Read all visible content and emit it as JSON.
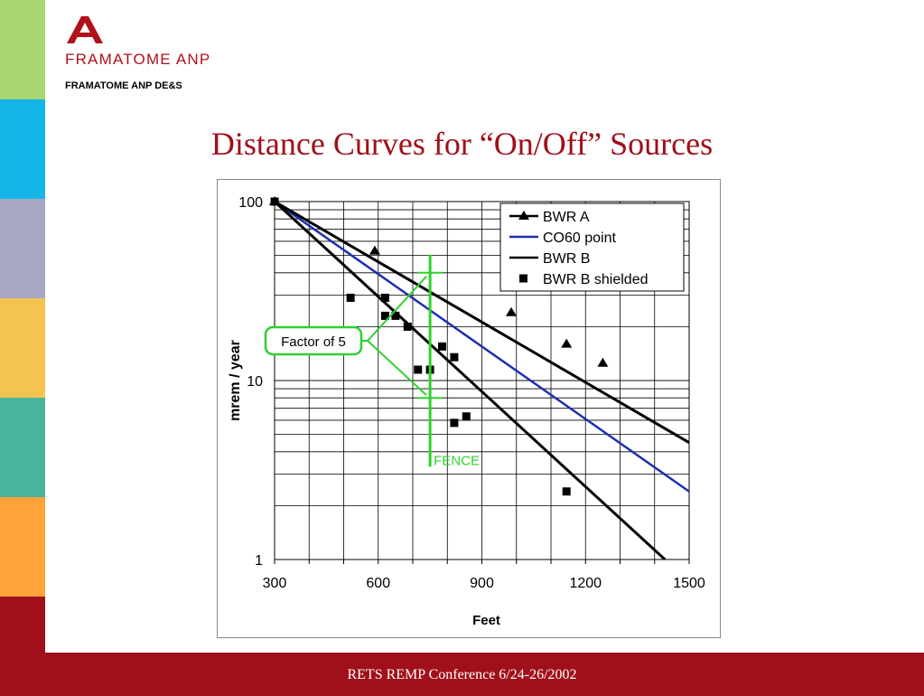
{
  "sidebar": {
    "stripes": [
      {
        "name": "stripe-green",
        "color": "#a8d672"
      },
      {
        "name": "stripe-cyan",
        "color": "#14b6e8"
      },
      {
        "name": "stripe-lavender",
        "color": "#a6a8c6"
      },
      {
        "name": "stripe-yellow",
        "color": "#f4c44e"
      },
      {
        "name": "stripe-teal",
        "color": "#47b49e"
      },
      {
        "name": "stripe-orange",
        "color": "#ffa33a"
      },
      {
        "name": "stripe-darkred",
        "color": "#a0101a"
      }
    ]
  },
  "header": {
    "logo_letter": "A",
    "brand": "FRAMATOME ANP",
    "division": "FRAMATOME ANP DE&S"
  },
  "slide": {
    "title": "Distance Curves for “On/Off” Sources"
  },
  "footer": {
    "text": "RETS REMP Conference  6/24-26/2002"
  },
  "colors": {
    "accent": "#a0101a",
    "annotation": "#2fd12f",
    "co60": "#1f2fb0"
  },
  "chart_data": {
    "type": "line",
    "xlabel": "Feet",
    "ylabel": "mrem / year",
    "xlim": [
      300,
      1500
    ],
    "ylim": [
      1,
      100
    ],
    "yscale": "log",
    "x_ticks": [
      300,
      600,
      900,
      1200,
      1500
    ],
    "y_ticks": [
      {
        "value": 1,
        "label": "1"
      },
      {
        "value": 10,
        "label": "10"
      },
      {
        "value": 100,
        "label": "100"
      }
    ],
    "grid": true,
    "legend_position": "top-right",
    "series": [
      {
        "name": "BWR A",
        "kind": "line-triangle",
        "color": "#000000",
        "x": [
          300,
          1500
        ],
        "y": [
          100,
          4.5
        ],
        "markers": {
          "x": [
            300,
            590,
            985,
            1145,
            1250
          ],
          "y": [
            100,
            53,
            24,
            16,
            12.5
          ]
        }
      },
      {
        "name": "CO60 point",
        "kind": "line",
        "color": "#1f2fb0",
        "x": [
          300,
          1500
        ],
        "y": [
          100,
          2.4
        ]
      },
      {
        "name": "BWR B",
        "kind": "line",
        "color": "#000000",
        "x": [
          300,
          1430
        ],
        "y": [
          100,
          1
        ]
      },
      {
        "name": "BWR B shielded",
        "kind": "square",
        "color": "#000000",
        "x": [
          300,
          520,
          620,
          620,
          650,
          685,
          715,
          750,
          785,
          820,
          820,
          855,
          1145
        ],
        "y": [
          100,
          29,
          29,
          23,
          23,
          20,
          11.5,
          11.5,
          15.5,
          13.5,
          5.8,
          6.3,
          2.4
        ]
      }
    ],
    "annotations": {
      "factor_label": "Factor of 5",
      "fence_label": "FENCE",
      "fence_x": 750,
      "fence_range": [
        3.3,
        40
      ],
      "upper_mark": 40,
      "lower_mark": 8
    }
  }
}
